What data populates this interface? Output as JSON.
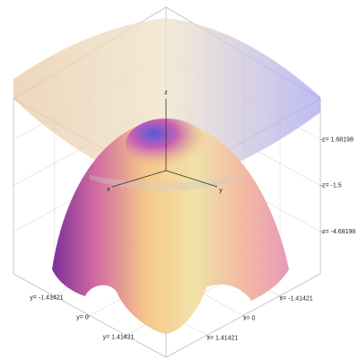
{
  "chart_data": {
    "type": "surface3d",
    "axis_labels": {
      "x": "x",
      "y": "y",
      "z": "z"
    },
    "xlim": [
      -3,
      3
    ],
    "ylim": [
      -3,
      3
    ],
    "zlim": [
      -7.6,
      4.5
    ],
    "xticks": [
      {
        "value": -1.41421,
        "label": "x= -1.41421"
      },
      {
        "value": 0,
        "label": "x= 0"
      },
      {
        "value": 1.41421,
        "label": "x= 1.41421"
      }
    ],
    "yticks": [
      {
        "value": -1.41421,
        "label": "y= -1.41421"
      },
      {
        "value": 0,
        "label": "y= 0"
      },
      {
        "value": 1.41421,
        "label": "y= 1.41421"
      }
    ],
    "zticks": [
      {
        "value": 1.68198,
        "label": "z= 1.68198"
      },
      {
        "value": -1.5,
        "label": "z= -1.5"
      },
      {
        "value": -4.68198,
        "label": "z= -4.68198"
      }
    ],
    "grid": true
  }
}
